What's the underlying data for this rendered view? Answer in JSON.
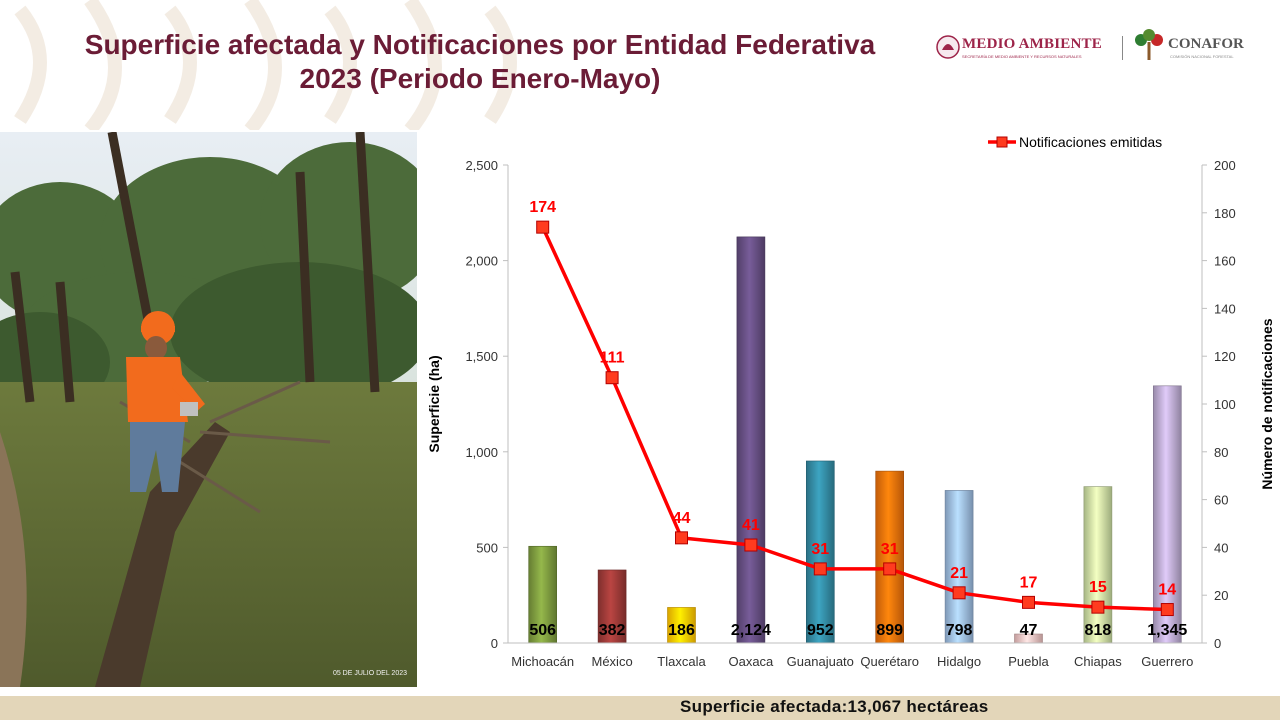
{
  "title": "Superficie afectada y Notificaciones por Entidad Federativa 2023 (Periodo Enero-Mayo)",
  "logos": {
    "medio_ambiente": "MEDIO AMBIENTE",
    "medio_ambiente_sub": "SECRETARÍA DE MEDIO AMBIENTE Y RECURSOS NATURALES",
    "conafor": "CONAFOR",
    "conafor_sub": "COMISIÓN NACIONAL FORESTAL"
  },
  "photo": {
    "date_stamp": "05 DE JULIO DEL 2023"
  },
  "footer": {
    "text": "Superficie afectada:13,067 hectáreas"
  },
  "chart_data": {
    "type": "bar",
    "categories": [
      "Michoacán",
      "México",
      "Tlaxcala",
      "Oaxaca",
      "Guanajuato",
      "Querétaro",
      "Hidalgo",
      "Puebla",
      "Chiapas",
      "Guerrero"
    ],
    "series": [
      {
        "type": "bar",
        "axis": "left",
        "values": [
          506,
          382,
          186,
          2124,
          952,
          899,
          798,
          47,
          818,
          1345
        ],
        "labels": [
          "506",
          "382",
          "186",
          "2,124",
          "952",
          "899",
          "798",
          "47",
          "818",
          "1,345"
        ],
        "colors": [
          "#77933c",
          "#953735",
          "#ffc000",
          "#604a7b",
          "#31849b",
          "#e46c0a",
          "#95b3d7",
          "#e6b9b8",
          "#c3d69b",
          "#b3a2c7"
        ]
      },
      {
        "type": "line",
        "axis": "right",
        "name": "Notificaciones emitidas",
        "values": [
          174,
          111,
          44,
          41,
          31,
          31,
          21,
          17,
          15,
          14
        ],
        "color": "#ff0000"
      }
    ],
    "ylabel": "Superficie (ha)",
    "y2label": "Número de notificaciones",
    "ylim": [
      0,
      2500
    ],
    "y2lim": [
      0,
      200
    ],
    "yticks": [
      0,
      500,
      1000,
      1500,
      2000,
      2500
    ],
    "yticklabels": [
      "0",
      "500",
      "1,000",
      "1,500",
      "2,000",
      "2,500"
    ],
    "y2ticks": [
      0,
      20,
      40,
      60,
      80,
      100,
      120,
      140,
      160,
      180,
      200
    ],
    "grid": false,
    "legend_position": "top-right"
  }
}
